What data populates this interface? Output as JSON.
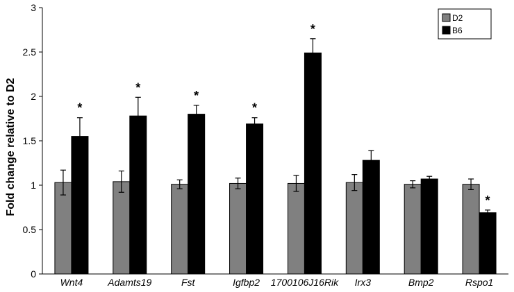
{
  "chart_data": {
    "type": "bar",
    "title": "",
    "xlabel": "",
    "ylabel": "Fold change relative to D2",
    "ylim": [
      0,
      3
    ],
    "yticks": [
      "0",
      "0.5",
      "1",
      "1.5",
      "2",
      "2.5",
      "3"
    ],
    "grid": false,
    "legend_position": "top-right",
    "categories": [
      "Wnt4",
      "Adamts19",
      "Fst",
      "Igfbp2",
      "1700106J16Rik",
      "Irx3",
      "Bmp2",
      "Rspo1"
    ],
    "series": [
      {
        "name": "D2",
        "color": "#808080",
        "values": [
          1.03,
          1.04,
          1.01,
          1.02,
          1.02,
          1.03,
          1.01,
          1.01
        ],
        "errors": [
          0.14,
          0.12,
          0.05,
          0.06,
          0.09,
          0.09,
          0.04,
          0.06
        ]
      },
      {
        "name": "B6",
        "color": "#000000",
        "values": [
          1.55,
          1.78,
          1.8,
          1.69,
          2.49,
          1.28,
          1.07,
          0.69
        ],
        "errors": [
          0.21,
          0.21,
          0.1,
          0.07,
          0.16,
          0.11,
          0.03,
          0.03
        ]
      }
    ],
    "significance": [
      "*",
      "*",
      "*",
      "*",
      "*",
      "",
      "",
      "*"
    ]
  }
}
